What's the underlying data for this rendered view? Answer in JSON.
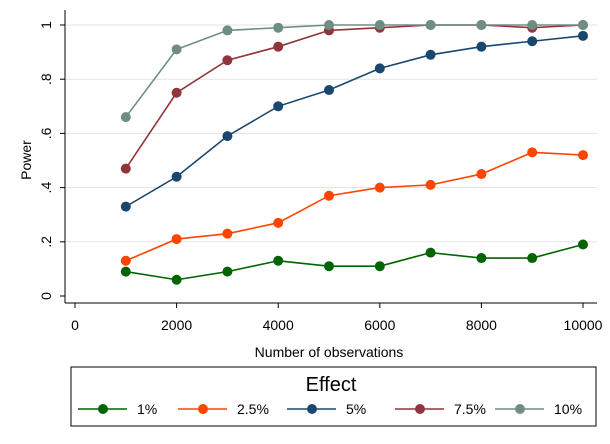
{
  "chart_data": {
    "type": "line",
    "title": "",
    "xlabel": "Number of observations",
    "ylabel": "Power",
    "xlim": [
      0,
      10000
    ],
    "ylim": [
      0,
      1
    ],
    "x_ticks": [
      0,
      2000,
      4000,
      6000,
      8000,
      10000
    ],
    "x_tick_labels": [
      "0",
      "2000",
      "4000",
      "6000",
      "8000",
      "10000"
    ],
    "y_ticks": [
      0,
      0.2,
      0.4,
      0.6,
      0.8,
      1
    ],
    "y_tick_labels": [
      "0",
      ".2",
      ".4",
      ".6",
      ".8",
      "1"
    ],
    "grid": "horizontal",
    "legend": {
      "title": "Effect",
      "position": "bottom"
    },
    "x": [
      1000,
      2000,
      3000,
      4000,
      5000,
      6000,
      7000,
      8000,
      9000,
      10000
    ],
    "series": [
      {
        "name": "1%",
        "color": "#006400",
        "values": [
          0.09,
          0.06,
          0.09,
          0.13,
          0.11,
          0.11,
          0.16,
          0.14,
          0.14,
          0.19
        ]
      },
      {
        "name": "2.5%",
        "color": "#FF4500",
        "values": [
          0.13,
          0.21,
          0.23,
          0.27,
          0.37,
          0.4,
          0.41,
          0.45,
          0.53,
          0.52
        ]
      },
      {
        "name": "5%",
        "color": "#1A476F",
        "values": [
          0.33,
          0.44,
          0.59,
          0.7,
          0.76,
          0.84,
          0.89,
          0.92,
          0.94,
          0.96
        ]
      },
      {
        "name": "7.5%",
        "color": "#90353B",
        "values": [
          0.47,
          0.75,
          0.87,
          0.92,
          0.98,
          0.99,
          1.0,
          1.0,
          0.99,
          1.0
        ]
      },
      {
        "name": "10%",
        "color": "#6E8E84",
        "values": [
          0.66,
          0.91,
          0.98,
          0.99,
          1.0,
          1.0,
          1.0,
          1.0,
          1.0,
          1.0
        ]
      }
    ]
  }
}
